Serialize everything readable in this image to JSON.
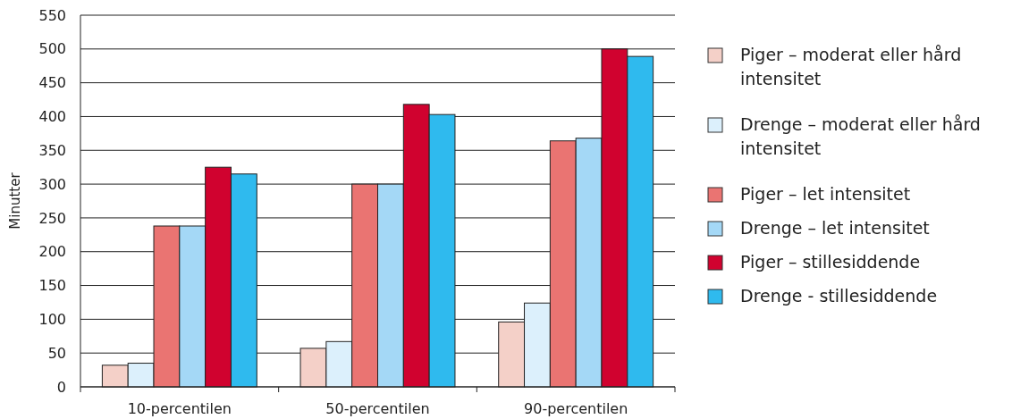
{
  "chart_data": {
    "type": "bar",
    "ylabel": "Minutter",
    "categories": [
      "10-percentilen",
      "50-percentilen",
      "90-percentilen"
    ],
    "series": [
      {
        "name": "Piger – moderat eller hård intensitet",
        "color": "#f4d0c8",
        "values": [
          32,
          57,
          96
        ]
      },
      {
        "name": "Drenge – moderat eller hård intensitet",
        "color": "#dcf0fc",
        "values": [
          35,
          67,
          124
        ]
      },
      {
        "name": "Piger – let intensitet",
        "color": "#ea7472",
        "values": [
          238,
          300,
          364
        ]
      },
      {
        "name": "Drenge – let intensitet",
        "color": "#a4d8f6",
        "values": [
          238,
          300,
          368
        ]
      },
      {
        "name": "Piger – stillesiddende",
        "color": "#d0022f",
        "values": [
          325,
          418,
          500
        ]
      },
      {
        "name": "Drenge - stillesiddende",
        "color": "#2fbaee",
        "values": [
          315,
          403,
          489
        ]
      }
    ],
    "ylim": [
      0,
      550
    ],
    "yticks": [
      0,
      50,
      100,
      150,
      200,
      250,
      300,
      350,
      400,
      450,
      500,
      550
    ],
    "grid": "y",
    "legend": "right"
  }
}
